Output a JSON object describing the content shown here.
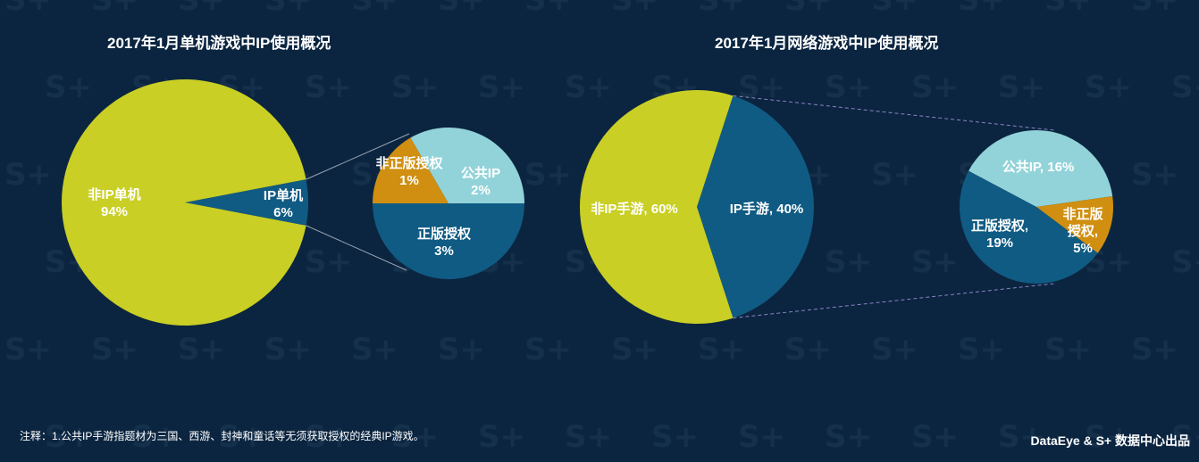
{
  "colors": {
    "background": "#0b2540",
    "yellow_green": "#c9cf24",
    "dark_blue": "#105b83",
    "light_cyan": "#92d3d9",
    "orange": "#d08f10"
  },
  "watermark_text": "S+",
  "chart_data": [
    {
      "type": "pie",
      "title": "2017年1月单机游戏中IP使用概况",
      "main_pie": [
        {
          "label": "非IP单机",
          "value": 94,
          "display": "94%"
        },
        {
          "label": "IP单机",
          "value": 6,
          "display": "6%"
        }
      ],
      "sub_pie_of": "IP单机",
      "sub_pie": [
        {
          "label": "非正版授权",
          "value": 1,
          "display": "1%"
        },
        {
          "label": "公共IP",
          "value": 2,
          "display": "2%"
        },
        {
          "label": "正版授权",
          "value": 3,
          "display": "3%"
        }
      ]
    },
    {
      "type": "pie",
      "title": "2017年1月网络游戏中IP使用概况",
      "main_pie": [
        {
          "label": "非IP手游",
          "value": 60,
          "display": "60%"
        },
        {
          "label": "IP手游",
          "value": 40,
          "display": "40%"
        }
      ],
      "sub_pie_of": "IP手游",
      "sub_pie": [
        {
          "label": "公共IP",
          "value": 16,
          "display": "16%"
        },
        {
          "label": "非正版授权",
          "value": 5,
          "display": "5%"
        },
        {
          "label": "正版授权",
          "value": 19,
          "display": "19%"
        }
      ]
    }
  ],
  "footer": {
    "note": "注释：1.公共IP手游指题材为三国、西游、封神和童话等无须获取授权的经典IP游戏。",
    "credit": "DataEye & S+ 数据中心出品"
  }
}
